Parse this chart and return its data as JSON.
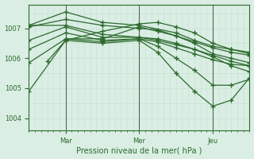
{
  "xlabel": "Pression niveau de la mer( hPa )",
  "bg_color": "#daeee4",
  "line_color": "#2d6a2d",
  "grid_color_minor": "#c5e0d0",
  "grid_color_major": "#a8c8b8",
  "vline_color": "#556655",
  "tick_color": "#2d6a2d",
  "ylim": [
    1003.6,
    1007.8
  ],
  "xlim": [
    0,
    72
  ],
  "day_positions": [
    12,
    36,
    60
  ],
  "day_labels": [
    "Mar",
    "Mer",
    "Jeu"
  ],
  "yticks": [
    1004,
    1005,
    1006,
    1007
  ],
  "series": [
    {
      "x": [
        0,
        12,
        24,
        36,
        42,
        48,
        54,
        60,
        66,
        72
      ],
      "y": [
        1004.9,
        1006.6,
        1006.5,
        1006.6,
        1006.2,
        1005.5,
        1004.9,
        1004.4,
        1004.6,
        1005.35
      ]
    },
    {
      "x": [
        0,
        12,
        24,
        36,
        42,
        48,
        54,
        60,
        66,
        72
      ],
      "y": [
        1005.85,
        1006.65,
        1006.55,
        1006.65,
        1006.4,
        1006.0,
        1005.6,
        1005.1,
        1005.1,
        1005.3
      ]
    },
    {
      "x": [
        0,
        12,
        24,
        36,
        42,
        48,
        54,
        60,
        66,
        72
      ],
      "y": [
        1006.3,
        1006.85,
        1006.6,
        1006.65,
        1006.55,
        1006.35,
        1006.15,
        1005.95,
        1005.8,
        1005.75
      ]
    },
    {
      "x": [
        0,
        12,
        24,
        36,
        42,
        48,
        54,
        60,
        66,
        72
      ],
      "y": [
        1006.6,
        1007.05,
        1006.7,
        1006.7,
        1006.6,
        1006.45,
        1006.3,
        1006.1,
        1005.9,
        1005.75
      ]
    },
    {
      "x": [
        0,
        12,
        24,
        36,
        42,
        48,
        54,
        60,
        66,
        72
      ],
      "y": [
        1007.1,
        1007.1,
        1006.8,
        1006.7,
        1006.65,
        1006.5,
        1006.3,
        1006.05,
        1005.75,
        1005.55
      ]
    },
    {
      "x": [
        0,
        12,
        24,
        36,
        42,
        48,
        54,
        60,
        66,
        72
      ],
      "y": [
        1007.05,
        1007.3,
        1007.1,
        1007.0,
        1006.95,
        1006.75,
        1006.5,
        1006.15,
        1006.0,
        1005.85
      ]
    },
    {
      "x": [
        0,
        12,
        24,
        36,
        48,
        54,
        60,
        66,
        72
      ],
      "y": [
        1007.1,
        1007.55,
        1007.2,
        1007.1,
        1006.85,
        1006.6,
        1006.4,
        1006.3,
        1006.2
      ]
    },
    {
      "x": [
        6,
        12,
        24,
        36,
        42,
        48,
        54,
        60,
        66,
        72
      ],
      "y": [
        1005.9,
        1006.6,
        1006.9,
        1007.15,
        1007.2,
        1007.05,
        1006.85,
        1006.5,
        1006.3,
        1006.15
      ]
    },
    {
      "x": [
        12,
        24,
        36,
        42,
        48,
        54,
        60,
        66,
        72
      ],
      "y": [
        1006.65,
        1006.65,
        1007.05,
        1006.9,
        1006.75,
        1006.55,
        1006.35,
        1006.2,
        1006.1
      ]
    }
  ]
}
